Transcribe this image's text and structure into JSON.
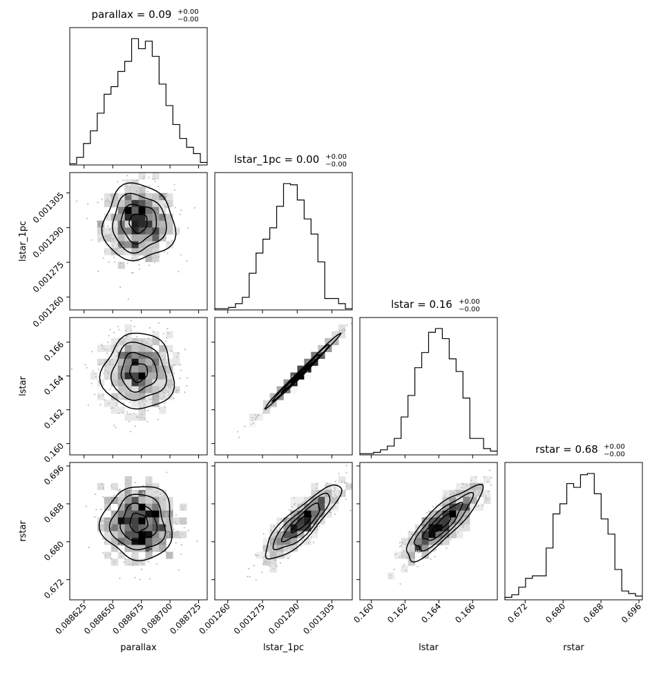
{
  "chart_data": {
    "type": "corner",
    "parameters": [
      {
        "key": "parallax",
        "label": "parallax",
        "title": "parallax = 0.09",
        "err_plus": "+0.00",
        "err_minus": "−0.00",
        "range": [
          0.0886125,
          0.0887325
        ],
        "ticks": [
          0.088625,
          0.08865,
          0.088675,
          0.0887,
          0.088725
        ],
        "tick_labels": [
          "0.088625",
          "0.088650",
          "0.088675",
          "0.088700",
          "0.088725"
        ],
        "mean": 0.0886725,
        "sigma": 1.55e-05
      },
      {
        "key": "lstar_1pc",
        "label": "lstar_1pc",
        "title": "lstar_1pc = 0.00",
        "err_plus": "+0.00",
        "err_minus": "−0.00",
        "range": [
          0.0012544,
          0.0013138
        ],
        "ticks": [
          0.00126,
          0.001275,
          0.00129,
          0.001305
        ],
        "tick_labels": [
          "0.001260",
          "0.001275",
          "0.001290",
          "0.001305"
        ],
        "mean": 0.001292,
        "sigma": 8.2e-06
      },
      {
        "key": "lstar",
        "label": "lstar",
        "title": "lstar = 0.16",
        "err_plus": "+0.00",
        "err_minus": "−0.00",
        "range": [
          0.15933,
          0.16746
        ],
        "ticks": [
          0.16,
          0.162,
          0.164,
          0.166
        ],
        "tick_labels": [
          "0.160",
          "0.162",
          "0.164",
          "0.166"
        ],
        "mean": 0.16423,
        "sigma": 0.00112
      },
      {
        "key": "rstar",
        "label": "rstar",
        "title": "rstar = 0.68",
        "err_plus": "+0.00",
        "err_minus": "−0.00",
        "range": [
          0.66773,
          0.69673
        ],
        "ticks": [
          0.672,
          0.68,
          0.688,
          0.696
        ],
        "tick_labels": [
          "0.672",
          "0.680",
          "0.688",
          "0.696"
        ],
        "mean": 0.684,
        "sigma": 0.0039
      }
    ],
    "histograms": [
      [
        0.01,
        0.06,
        0.17,
        0.27,
        0.41,
        0.56,
        0.62,
        0.74,
        0.82,
        1.0,
        0.92,
        0.98,
        0.86,
        0.64,
        0.47,
        0.32,
        0.21,
        0.14,
        0.09,
        0.02
      ],
      [
        0.01,
        0.01,
        0.02,
        0.05,
        0.1,
        0.29,
        0.45,
        0.56,
        0.65,
        0.82,
        1.0,
        0.99,
        0.87,
        0.72,
        0.6,
        0.38,
        0.09,
        0.09,
        0.05,
        0.01
      ],
      [
        0.01,
        0.01,
        0.02,
        0.04,
        0.07,
        0.13,
        0.3,
        0.47,
        0.69,
        0.81,
        0.97,
        1.0,
        0.92,
        0.76,
        0.66,
        0.45,
        0.13,
        0.13,
        0.05,
        0.03
      ],
      [
        0.02,
        0.04,
        0.1,
        0.17,
        0.19,
        0.19,
        0.41,
        0.68,
        0.76,
        0.92,
        0.89,
        0.99,
        1.0,
        0.84,
        0.64,
        0.52,
        0.24,
        0.07,
        0.05,
        0.03
      ]
    ],
    "correlations": [
      [
        1.0,
        0.0,
        0.0,
        0.0
      ],
      [
        0.0,
        1.0,
        0.995,
        0.86
      ],
      [
        0.0,
        0.995,
        1.0,
        0.85
      ],
      [
        0.0,
        0.86,
        0.85,
        1.0
      ]
    ],
    "colors": {
      "line": "#000000",
      "points": "#bdbdbd",
      "shade_max": "#000000",
      "axis": "#000000"
    }
  }
}
